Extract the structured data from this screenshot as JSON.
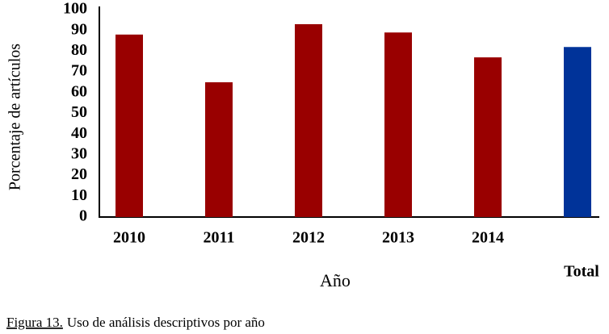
{
  "chart_data": {
    "type": "bar",
    "y_label": "Porcentaje de artículos",
    "x_label": "Año",
    "caption_label": "Figura 13.",
    "caption_text": "Uso de análisis descriptivos por año",
    "categories": [
      "2010",
      "2011",
      "2012",
      "2013",
      "2014",
      "Total"
    ],
    "values": [
      88,
      65,
      93,
      89,
      77,
      82
    ],
    "colors": [
      "#990000",
      "#990000",
      "#990000",
      "#990000",
      "#990000",
      "#003399"
    ],
    "ylim": [
      0,
      100
    ],
    "yticks": [
      0,
      10,
      20,
      30,
      40,
      50,
      60,
      70,
      80,
      90,
      100
    ],
    "grid": false
  }
}
